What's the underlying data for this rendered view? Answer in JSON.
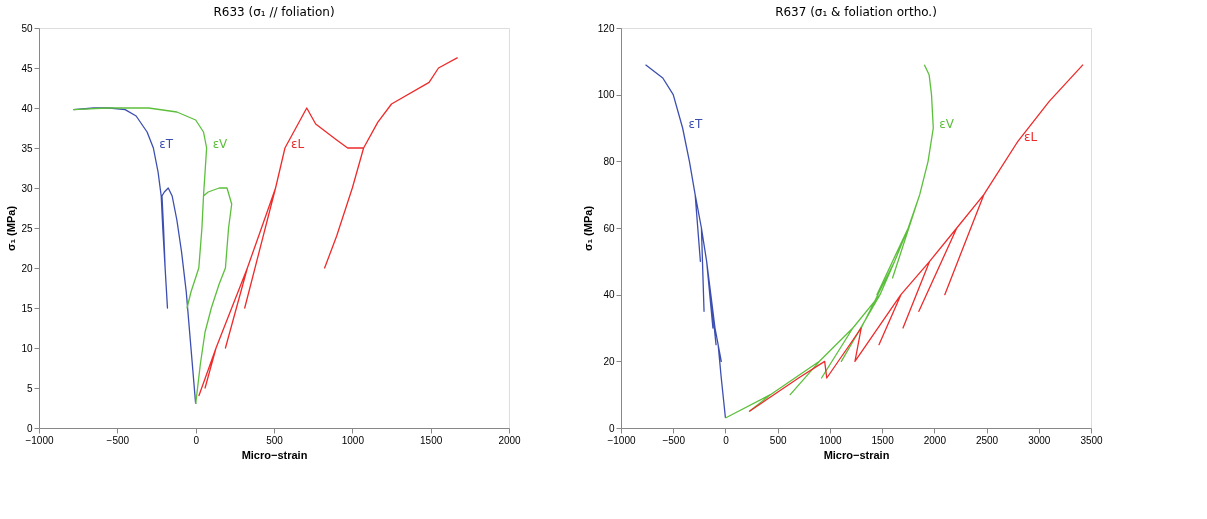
{
  "chart_data": [
    {
      "type": "line",
      "title": "R633 (σ₁ // foliation)",
      "xlabel": "Micro−strain",
      "ylabel": "σ₁ (MPa)",
      "xlim": [
        -1000,
        2000
      ],
      "xticks": [
        -1000,
        -500,
        0,
        500,
        1000,
        1500,
        2000
      ],
      "ylim": [
        0,
        50
      ],
      "yticks": [
        0,
        5,
        10,
        15,
        20,
        25,
        30,
        35,
        40,
        45,
        50
      ],
      "series": [
        {
          "name": "εT",
          "color": "#3c4fb0",
          "x": [
            0,
            -30,
            -60,
            -90,
            -120,
            -150,
            -175,
            -200,
            -215,
            -205,
            -195,
            -180,
            -195,
            -210,
            -220,
            -240,
            -270,
            -310,
            -380,
            -450,
            -550,
            -650,
            -780
          ],
          "values": [
            3,
            10,
            17,
            22,
            26,
            29,
            30,
            29.5,
            29,
            25,
            20,
            15,
            20,
            25,
            29,
            32,
            35,
            37,
            39,
            39.8,
            40,
            40,
            39.8
          ]
        },
        {
          "name": "εV",
          "color": "#5cbf3c",
          "x": [
            0,
            30,
            60,
            100,
            150,
            190,
            210,
            230,
            200,
            150,
            80,
            50,
            40,
            20,
            -30,
            -55,
            -30,
            20,
            40,
            50,
            60,
            70,
            50,
            0,
            -120,
            -300,
            -570,
            -780
          ],
          "values": [
            3,
            8,
            12,
            15,
            18,
            20,
            25,
            28,
            30,
            30,
            29.5,
            29,
            25,
            20,
            17,
            15,
            17,
            20,
            25,
            29,
            32,
            35,
            37,
            38.5,
            39.5,
            40,
            40,
            39.8
          ]
        },
        {
          "name": "εL",
          "color": "#ee2a2a",
          "x": [
            20,
            130,
            60,
            130,
            330,
            190,
            330,
            510,
            313,
            510,
            570,
            709,
            766,
            900,
            970,
            1072,
            1000,
            900,
            823,
            900,
            1000,
            1072,
            1162,
            1250,
            1490,
            1550,
            1672
          ],
          "values": [
            4,
            10,
            5,
            10,
            20,
            10,
            20,
            30,
            15,
            30,
            35,
            40,
            38,
            36,
            35,
            35,
            30,
            24,
            20,
            24,
            30,
            35,
            38.2,
            40.5,
            43.2,
            45,
            46.3
          ]
        }
      ]
    },
    {
      "type": "line",
      "title": "R637 (σ₁ & foliation ortho.)",
      "xlabel": "Micro−strain",
      "ylabel": "σ₁ (MPa)",
      "xlim": [
        -1000,
        3500
      ],
      "xticks": [
        -1000,
        -500,
        0,
        500,
        1000,
        1500,
        2000,
        2500,
        3000,
        3500
      ],
      "ylim": [
        0,
        120
      ],
      "yticks": [
        0,
        20,
        40,
        60,
        80,
        100,
        120
      ],
      "series": [
        {
          "name": "εT",
          "color": "#3c4fb0",
          "x": [
            0,
            -40,
            -70,
            -100,
            -40,
            -100,
            -140,
            -90,
            -140,
            -180,
            -120,
            -180,
            -230,
            -205,
            -230,
            -290,
            -240,
            -290,
            -345,
            -410,
            -500,
            -600,
            -765
          ],
          "values": [
            3,
            15,
            25,
            30,
            20,
            30,
            40,
            25,
            40,
            50,
            30,
            50,
            60,
            35,
            60,
            70,
            50,
            70,
            80,
            90,
            100,
            105,
            109
          ]
        },
        {
          "name": "εV",
          "color": "#5cbf3c",
          "x": [
            0,
            430,
            230,
            430,
            900,
            620,
            900,
            1220,
            920,
            1220,
            1480,
            1110,
            1480,
            1620,
            1300,
            1620,
            1750,
            1450,
            1750,
            1860,
            1600,
            1860,
            1940,
            1990,
            1973,
            1950,
            1904
          ],
          "values": [
            3,
            10,
            5,
            10,
            20,
            10,
            20,
            30,
            15,
            30,
            40,
            20,
            40,
            50,
            30,
            50,
            60,
            40,
            60,
            70,
            45,
            70,
            80,
            90,
            100,
            106,
            109
          ]
        },
        {
          "name": "εL",
          "color": "#ee2a2a",
          "x": [
            230,
            700,
            950,
            970,
            1300,
            1240,
            1680,
            1470,
            1680,
            1955,
            1700,
            1955,
            2215,
            1852,
            2215,
            2474,
            2100,
            2474,
            2800,
            3100,
            3424
          ],
          "values": [
            5,
            15,
            20,
            15,
            30,
            20,
            40,
            25,
            40,
            50,
            30,
            50,
            60,
            35,
            60,
            70,
            40,
            70,
            86,
            98,
            109
          ]
        }
      ]
    }
  ]
}
